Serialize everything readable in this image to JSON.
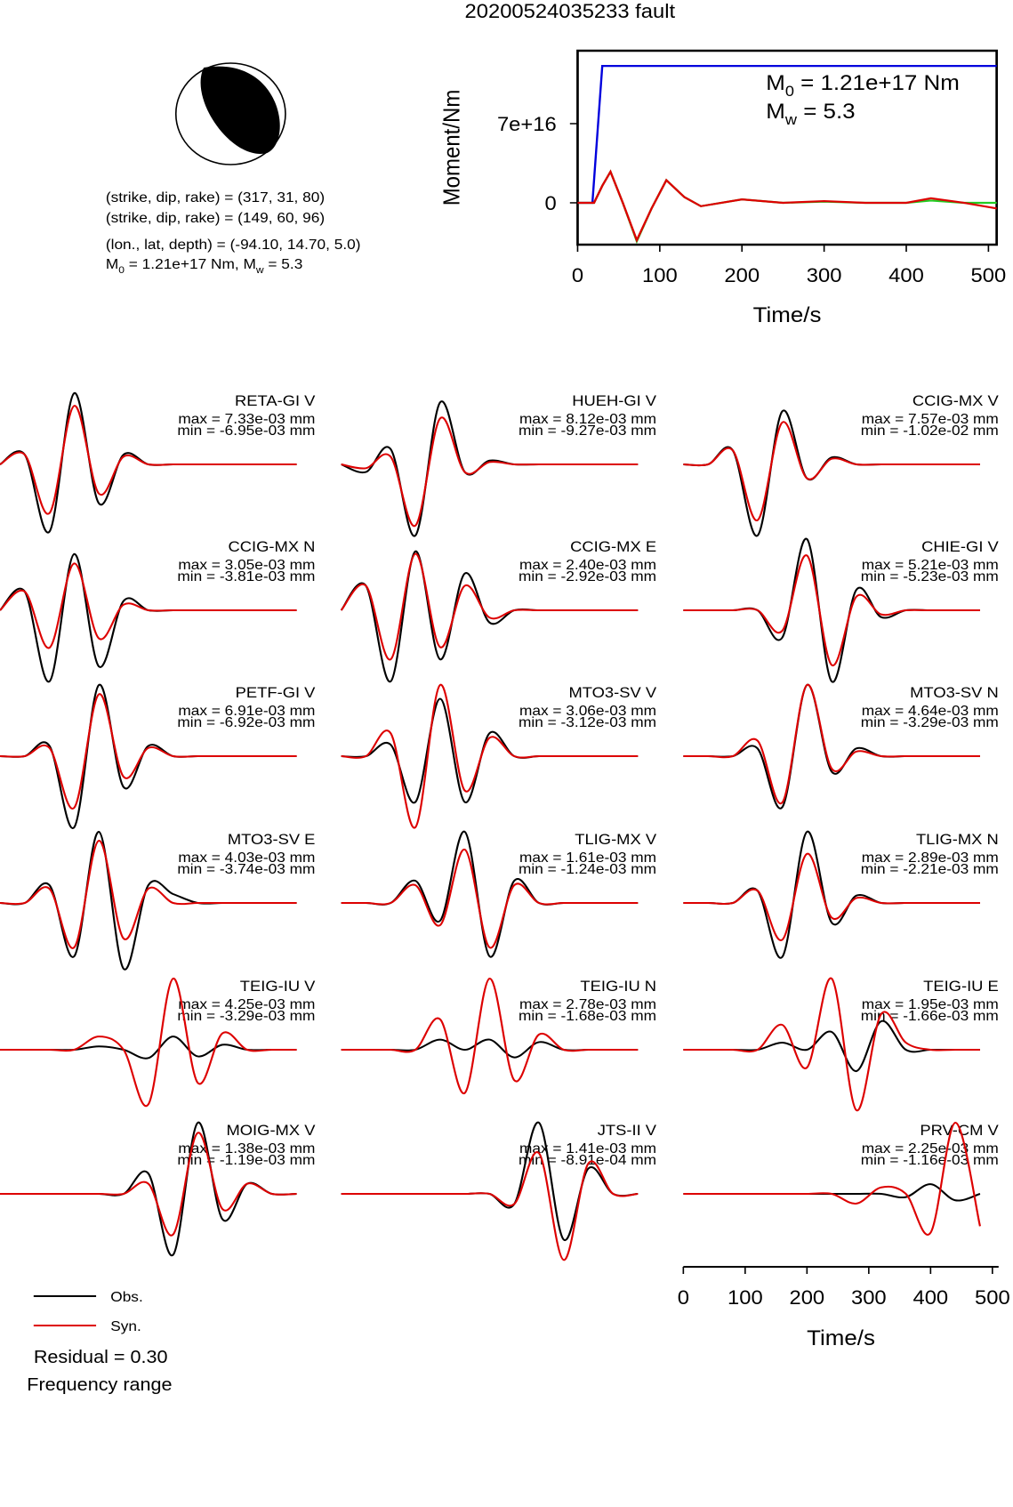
{
  "title": "20200524035233 fault",
  "mechanism": {
    "lines": [
      "(strike, dip, rake) = (317, 31, 80)",
      "(strike, dip, rake) = (149, 60, 96)",
      "(lon., lat, depth) = (-94.10, 14.70, 5.0)"
    ],
    "moment_parts": [
      "M",
      "0",
      " = 1.21e+17 Nm, M",
      "w",
      " = 5.3"
    ]
  },
  "chart_data": [
    {
      "type": "line",
      "ylabel": "Moment/Nm",
      "xlabel": "Time/s",
      "xlim": [
        0,
        510
      ],
      "xticks": [
        0,
        100,
        200,
        300,
        400,
        500
      ],
      "ylim": [
        -3.7e+16,
        1.345e+17
      ],
      "yticks": [
        0,
        {
          "value": 7e+16,
          "label": "7e+16"
        }
      ],
      "annotations": [
        [
          "M",
          "0",
          " = 1.21e+17 Nm"
        ],
        [
          "M",
          "w",
          " = 5.3"
        ]
      ],
      "series": [
        {
          "color": "#0000dd",
          "x": [
            0,
            18,
            30,
            510
          ],
          "values": [
            0,
            0,
            1.21e+17,
            1.21e+17
          ]
        },
        {
          "color": "#22cc22",
          "x": [
            0,
            20,
            30,
            40,
            55,
            72,
            90,
            108,
            130,
            150,
            200,
            250,
            300,
            350,
            400,
            430,
            470,
            510
          ],
          "values": [
            0,
            0,
            1.5e+16,
            2.75e+16,
            0,
            -3.4e+16,
            -5000000000000000.0,
            2e+16,
            5000000000000000.0,
            -3000000000000000.0,
            3000000000000000.0,
            0,
            1000000000000000.0,
            0,
            0,
            2000000000000000.0,
            0,
            0
          ]
        },
        {
          "color": "#dd0000",
          "x": [
            0,
            20,
            30,
            40,
            55,
            72,
            90,
            108,
            130,
            150,
            200,
            250,
            300,
            350,
            400,
            430,
            470,
            510
          ],
          "values": [
            0,
            0,
            1.5e+16,
            2.75e+16,
            0,
            -3.3e+16,
            -5000000000000000.0,
            2e+16,
            5000000000000000.0,
            -3000000000000000.0,
            3000000000000000.0,
            0,
            1500000000000000.0,
            0,
            0,
            4000000000000000.0,
            0,
            -5000000000000000.0
          ]
        }
      ]
    },
    {
      "type": "waveforms",
      "xlabel": "Time/s",
      "xlim": [
        0,
        510
      ],
      "xticks": [
        0,
        100,
        200,
        300,
        400,
        500
      ],
      "x": [
        0,
        40,
        80,
        120,
        160,
        200,
        240,
        280,
        320,
        360,
        400,
        440,
        480
      ],
      "legend": [
        {
          "name": "Obs.",
          "color": "#000000"
        },
        {
          "name": "Syn.",
          "color": "#dd0000"
        }
      ],
      "residual": "Residual = 0.30",
      "note": "Frequency range",
      "stations": [
        {
          "name": "RETA-GI V",
          "max": "max = 7.33e-03 mm",
          "min": "min = -6.95e-03 mm",
          "obs": [
            0,
            0.001,
            -0.0069,
            0.0073,
            -0.004,
            0.001,
            0,
            0,
            0,
            0,
            0,
            0,
            0
          ],
          "syn": [
            0,
            0.001,
            -0.005,
            0.006,
            -0.003,
            0.0008,
            0,
            0,
            0,
            0,
            0,
            0,
            0
          ]
        },
        {
          "name": "HUEH-GI V",
          "max": "max = 8.12e-03 mm",
          "min": "min = -9.27e-03 mm",
          "obs": [
            0,
            -0.001,
            0.002,
            -0.0093,
            0.0081,
            -0.001,
            0.0005,
            0,
            0,
            0,
            0,
            0,
            0
          ],
          "syn": [
            0,
            -0.0005,
            0.001,
            -0.008,
            0.006,
            -0.001,
            0.0003,
            0,
            0,
            0,
            0,
            0,
            0
          ]
        },
        {
          "name": "CCIG-MX V",
          "max": "max = 7.57e-03 mm",
          "min": "min = -1.02e-02 mm",
          "obs": [
            0,
            0,
            0.002,
            -0.0102,
            0.0076,
            -0.002,
            0.001,
            0,
            0,
            0,
            0,
            0,
            0
          ],
          "syn": [
            0,
            0,
            0.002,
            -0.008,
            0.006,
            -0.002,
            0.0008,
            0,
            0,
            0,
            0,
            0,
            0
          ]
        },
        {
          "name": "CCIG-MX N",
          "max": "max = 3.05e-03 mm",
          "min": "min = -3.81e-03 mm",
          "obs": [
            0,
            0.001,
            -0.0038,
            0.003,
            -0.003,
            0.0005,
            0,
            0,
            0,
            0,
            0,
            0,
            0
          ],
          "syn": [
            0,
            0.001,
            -0.002,
            0.0025,
            -0.0015,
            0.0003,
            0,
            0,
            0,
            0,
            0,
            0,
            0
          ]
        },
        {
          "name": "CCIG-MX E",
          "max": "max = 2.40e-03 mm",
          "min": "min = -2.92e-03 mm",
          "obs": [
            0,
            0.001,
            -0.0029,
            0.0024,
            -0.002,
            0.0015,
            -0.0005,
            0,
            0,
            0,
            0,
            0,
            0
          ],
          "syn": [
            0,
            0.001,
            -0.002,
            0.0023,
            -0.0015,
            0.001,
            -0.0003,
            0,
            0,
            0,
            0,
            0,
            0
          ]
        },
        {
          "name": "CHIE-GI V",
          "max": "max = 5.21e-03 mm",
          "min": "min = -5.23e-03 mm",
          "obs": [
            0,
            0,
            0,
            0,
            -0.002,
            0.0052,
            -0.0052,
            0.0015,
            -0.0005,
            0,
            0,
            0,
            0
          ],
          "syn": [
            0,
            0,
            0,
            0,
            -0.0015,
            0.004,
            -0.004,
            0.001,
            -0.0003,
            0,
            0,
            0,
            0
          ]
        },
        {
          "name": "PETF-GI V",
          "max": "max = 6.91e-03 mm",
          "min": "min = -6.92e-03 mm",
          "obs": [
            0,
            0,
            0.001,
            -0.0069,
            0.0069,
            -0.003,
            0.001,
            0,
            0,
            0,
            0,
            0,
            0
          ],
          "syn": [
            0,
            0,
            0.0008,
            -0.005,
            0.006,
            -0.002,
            0.0008,
            0,
            0,
            0,
            0,
            0,
            0
          ]
        },
        {
          "name": "MTO3-SV V",
          "max": "max = 3.06e-03 mm",
          "min": "min = -3.12e-03 mm",
          "obs": [
            0,
            0,
            0.0005,
            -0.002,
            0.0025,
            -0.002,
            0.001,
            0,
            0,
            0,
            0,
            0,
            0
          ],
          "syn": [
            0,
            0,
            0.001,
            -0.0031,
            0.0031,
            -0.0015,
            0.0008,
            0,
            0,
            0,
            0,
            0,
            0
          ]
        },
        {
          "name": "MTO3-SV N",
          "max": "max = 4.64e-03 mm",
          "min": "min = -3.29e-03 mm",
          "obs": [
            0,
            0,
            0,
            0.0005,
            -0.0033,
            0.0046,
            -0.001,
            0.0005,
            0,
            0,
            0,
            0,
            0
          ],
          "syn": [
            0,
            0,
            0,
            0.001,
            -0.003,
            0.0046,
            -0.0008,
            0.0003,
            0,
            0,
            0,
            0,
            0
          ]
        },
        {
          "name": "MTO3-SV E",
          "max": "max = 4.03e-03 mm",
          "min": "min = -3.74e-03 mm",
          "obs": [
            0,
            0,
            0.001,
            -0.003,
            0.004,
            -0.0037,
            0.001,
            0.0005,
            0,
            0,
            0,
            0,
            0
          ],
          "syn": [
            0,
            0,
            0.0008,
            -0.0025,
            0.0035,
            -0.002,
            0.0008,
            0,
            0,
            0,
            0,
            0,
            0
          ]
        },
        {
          "name": "TLIG-MX V",
          "max": "max = 1.61e-03 mm",
          "min": "min = -1.24e-03 mm",
          "obs": [
            0,
            0,
            0,
            0.0005,
            -0.0004,
            0.0016,
            -0.0012,
            0.0005,
            0,
            0,
            0,
            0,
            0
          ],
          "syn": [
            0,
            0,
            0,
            0.0004,
            -0.0005,
            0.0012,
            -0.001,
            0.0004,
            0,
            0,
            0,
            0,
            0
          ]
        },
        {
          "name": "TLIG-MX N",
          "max": "max = 2.89e-03 mm",
          "min": "min = -2.21e-03 mm",
          "obs": [
            0,
            0,
            0,
            0.0005,
            -0.0022,
            0.0029,
            -0.0008,
            0.0003,
            0,
            0,
            0,
            0,
            0
          ],
          "syn": [
            0,
            0,
            0,
            0.0005,
            -0.0015,
            0.002,
            -0.0006,
            0.0002,
            0,
            0,
            0,
            0,
            0
          ]
        },
        {
          "name": "TEIG-IU V",
          "max": "max = 4.25e-03 mm",
          "min": "min = -3.29e-03 mm",
          "obs": [
            0,
            0,
            0,
            0,
            0.0002,
            0,
            -0.0005,
            0.0008,
            -0.0004,
            0.0003,
            0,
            0,
            0
          ],
          "syn": [
            0,
            0,
            0,
            0,
            0.0008,
            0,
            -0.0033,
            0.0043,
            -0.002,
            0.001,
            0,
            0,
            0
          ]
        },
        {
          "name": "TEIG-IU N",
          "max": "max = 2.78e-03 mm",
          "min": "min = -1.68e-03 mm",
          "obs": [
            0,
            0,
            0,
            0,
            0.0004,
            0,
            0.0004,
            -0.0003,
            0.0003,
            0,
            0,
            0,
            0
          ],
          "syn": [
            0,
            0,
            0,
            0,
            0.0012,
            -0.0017,
            0.0028,
            -0.0012,
            0.0006,
            0,
            0,
            0,
            0
          ]
        },
        {
          "name": "TEIG-IU E",
          "max": "max = 1.95e-03 mm",
          "min": "min = -1.66e-03 mm",
          "obs": [
            0,
            0,
            0,
            0,
            0.0002,
            0,
            0.0005,
            -0.0006,
            0.0008,
            0,
            0,
            0,
            0
          ],
          "syn": [
            0,
            0,
            0,
            0,
            0.0007,
            -0.0005,
            0.002,
            -0.0017,
            0.001,
            0.0002,
            0,
            0,
            0
          ]
        },
        {
          "name": "MOIG-MX V",
          "max": "max = 1.38e-03 mm",
          "min": "min = -1.19e-03 mm",
          "obs": [
            0,
            0,
            0,
            0,
            0,
            0,
            0.0004,
            -0.0012,
            0.0014,
            -0.0005,
            0.0002,
            0,
            0
          ],
          "syn": [
            0,
            0,
            0,
            0,
            0,
            0,
            0.0002,
            -0.0008,
            0.0012,
            -0.0003,
            0.0002,
            0,
            0
          ]
        },
        {
          "name": "JTS-II V",
          "max": "max = 1.41e-03 mm",
          "min": "min = -8.91e-04 mm",
          "obs": [
            0,
            0,
            0,
            0,
            0,
            0,
            0,
            -0.0002,
            0.0014,
            -0.0009,
            0.0005,
            0,
            0
          ],
          "syn": [
            0,
            0,
            0,
            0,
            0,
            0,
            0,
            -0.0002,
            0.0008,
            -0.0013,
            0.0006,
            0,
            0
          ]
        },
        {
          "name": "PRV-CM V",
          "max": "max = 2.25e-03 mm",
          "min": "min = -1.16e-03 mm",
          "obs": [
            0,
            0,
            0,
            0,
            0,
            0,
            0,
            0,
            0,
            -0.0001,
            0.0003,
            -0.0002,
            0
          ],
          "syn": [
            0,
            0,
            0,
            0,
            0,
            0,
            0,
            -0.0003,
            0.0002,
            0,
            -0.0012,
            0.0022,
            -0.001
          ]
        }
      ]
    }
  ]
}
